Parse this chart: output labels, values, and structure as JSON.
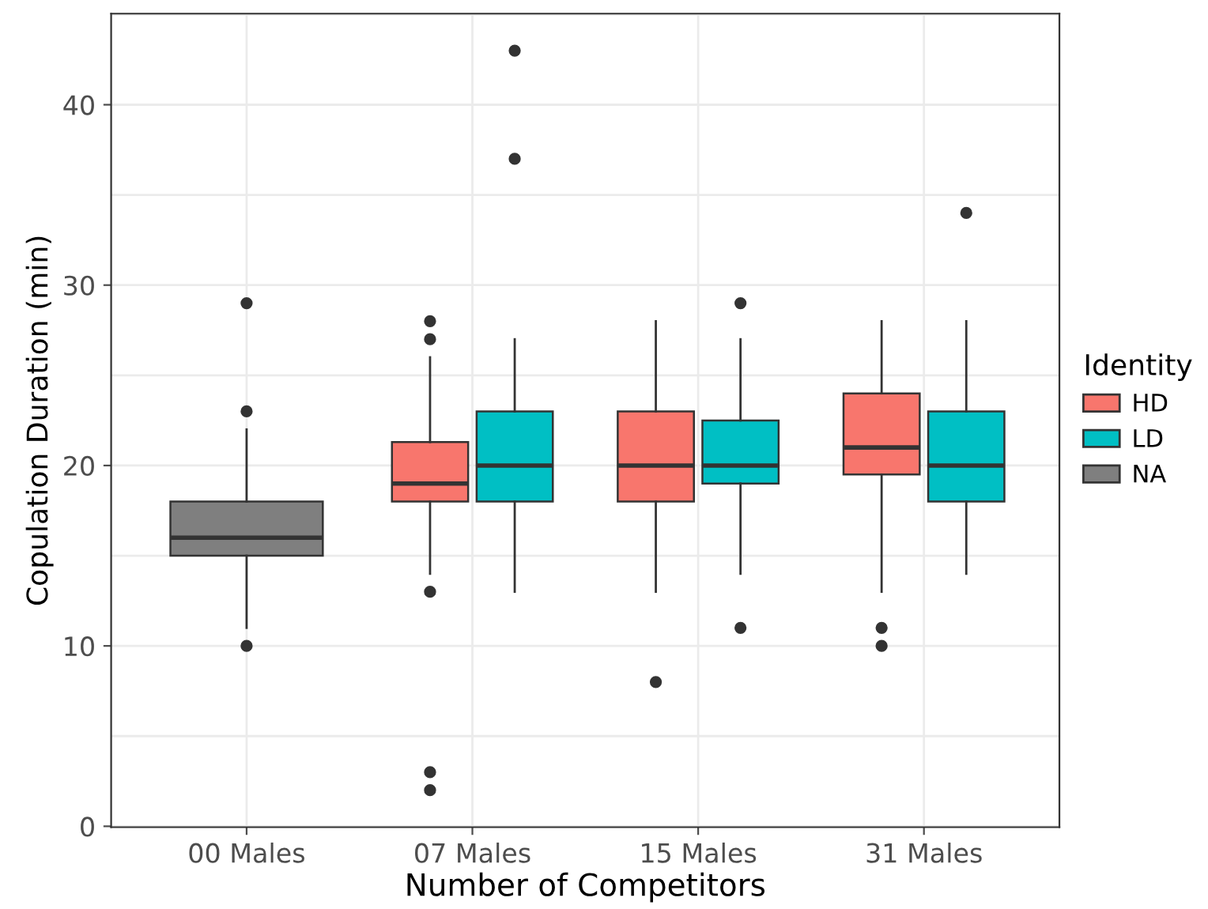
{
  "chart_data": {
    "type": "box",
    "xlabel": "Number of Competitors",
    "ylabel": "Copulation Duration (min)",
    "legend_title": "Identity",
    "legend": "right",
    "grid": true,
    "categories": [
      "00 Males",
      "07 Males",
      "15 Males",
      "31 Males"
    ],
    "ylim": [
      -0.05,
      45.05
    ],
    "yticks": [
      0,
      {
        "value": 5,
        "label": null
      },
      10,
      {
        "value": 15,
        "label": null
      },
      20,
      {
        "value": 25,
        "label": null
      },
      30,
      {
        "value": 35,
        "label": null
      },
      40,
      {
        "value": 45,
        "label": null
      }
    ],
    "series": [
      {
        "name": "HD",
        "color": "#f8766d",
        "boxes": [
          null,
          {
            "low": 14,
            "q1": 18,
            "median": 19,
            "q3": 21.3,
            "high": 26,
            "outliers": [
              2,
              3,
              13,
              27,
              28
            ]
          },
          {
            "low": 13,
            "q1": 18,
            "median": 20,
            "q3": 23,
            "high": 28,
            "outliers": [
              8
            ]
          },
          {
            "low": 13,
            "q1": 19.5,
            "median": 21,
            "q3": 24,
            "high": 28,
            "outliers": [
              10,
              11
            ]
          }
        ]
      },
      {
        "name": "LD",
        "color": "#00bfc4",
        "boxes": [
          null,
          {
            "low": 13,
            "q1": 18,
            "median": 20,
            "q3": 23,
            "high": 27,
            "outliers": [
              37,
              43
            ]
          },
          {
            "low": 14,
            "q1": 19,
            "median": 20,
            "q3": 22.5,
            "high": 27,
            "outliers": [
              11,
              29
            ]
          },
          {
            "low": 14,
            "q1": 18,
            "median": 20,
            "q3": 23,
            "high": 28,
            "outliers": [
              34
            ]
          }
        ]
      },
      {
        "name": "NA",
        "color": "#7f7f7f",
        "boxes": [
          {
            "low": 11,
            "q1": 15,
            "median": 16,
            "q3": 18,
            "high": 22,
            "outliers": [
              10,
              23,
              29
            ]
          },
          null,
          null,
          null
        ]
      }
    ]
  }
}
